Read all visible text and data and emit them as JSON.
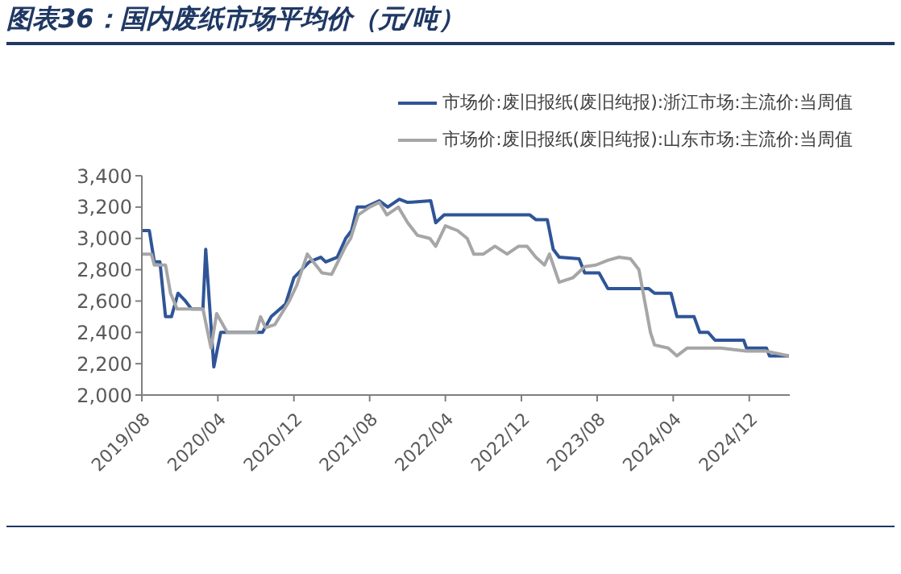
{
  "chart_data": {
    "type": "line",
    "title": "图表36：国内废纸市场平均价（元/吨）",
    "xlim": [
      "2019-08-01",
      "2025-04-10"
    ],
    "xticks": [
      {
        "value": "2019-08",
        "label": "2019/08"
      },
      {
        "value": "2020-04",
        "label": "2020/04"
      },
      {
        "value": "2020-12",
        "label": "2020/12"
      },
      {
        "value": "2021-08",
        "label": "2021/08"
      },
      {
        "value": "2022-04",
        "label": "2022/04"
      },
      {
        "value": "2022-12",
        "label": "2022/12"
      },
      {
        "value": "2023-08",
        "label": "2023/08"
      },
      {
        "value": "2024-04",
        "label": "2024/04"
      },
      {
        "value": "2024-12",
        "label": "2024/12"
      }
    ],
    "ylim": [
      2000,
      3400
    ],
    "yticks": [
      {
        "value": 2000,
        "label": "2,000"
      },
      {
        "value": 2200,
        "label": "2,200"
      },
      {
        "value": 2400,
        "label": "2,400"
      },
      {
        "value": 2600,
        "label": "2,600"
      },
      {
        "value": 2800,
        "label": "2,800"
      },
      {
        "value": 3000,
        "label": "3,000"
      },
      {
        "value": 3200,
        "label": "3,200"
      },
      {
        "value": 3400,
        "label": "3,400"
      }
    ],
    "grid": false,
    "legend": "top right",
    "marker": "none",
    "line_style": "solid",
    "series": [
      {
        "name": "市场价:废旧报纸(废旧纯报):浙江市场:主流价:当周值",
        "color": "#2f5597",
        "x": [
          "2019-08-01",
          "2019-08-25",
          "2019-09-10",
          "2019-09-28",
          "2019-10-16",
          "2019-11-04",
          "2019-11-25",
          "2019-12-19",
          "2020-01-07",
          "2020-02-13",
          "2020-02-22",
          "2020-03-19",
          "2020-04-10",
          "2020-08-22",
          "2020-09-19",
          "2020-11-04",
          "2020-12-01",
          "2021-01-19",
          "2021-02-25",
          "2021-03-13",
          "2021-04-19",
          "2021-05-16",
          "2021-06-04",
          "2021-06-22",
          "2021-07-19",
          "2021-09-01",
          "2021-09-28",
          "2021-11-04",
          "2021-12-01",
          "2022-02-13",
          "2022-03-01",
          "2022-03-28",
          "2022-12-28",
          "2023-01-16",
          "2023-02-22",
          "2023-03-13",
          "2023-04-01",
          "2023-06-04",
          "2023-06-22",
          "2023-08-07",
          "2023-09-04",
          "2024-01-13",
          "2024-02-01",
          "2024-03-25",
          "2024-04-13",
          "2024-06-07",
          "2024-06-25",
          "2024-07-22",
          "2024-08-13",
          "2024-11-13",
          "2024-11-22",
          "2025-01-25",
          "2025-02-04",
          "2025-04-07"
        ],
        "values": [
          3050,
          3050,
          2850,
          2850,
          2500,
          2500,
          2650,
          2600,
          2550,
          2550,
          2930,
          2180,
          2400,
          2400,
          2500,
          2580,
          2750,
          2850,
          2880,
          2850,
          2880,
          3000,
          3050,
          3200,
          3200,
          3240,
          3200,
          3250,
          3230,
          3240,
          3100,
          3150,
          3150,
          3120,
          3120,
          2930,
          2880,
          2870,
          2780,
          2780,
          2680,
          2680,
          2650,
          2650,
          2500,
          2500,
          2400,
          2400,
          2350,
          2350,
          2300,
          2300,
          2250,
          2250
        ]
      },
      {
        "name": "市场价:废旧报纸(废旧纯报):山东市场:主流价:当周值",
        "color": "#a6a6a6",
        "x": [
          "2019-08-01",
          "2019-09-01",
          "2019-09-10",
          "2019-10-16",
          "2019-11-01",
          "2019-11-22",
          "2020-02-13",
          "2020-03-10",
          "2020-03-28",
          "2020-05-01",
          "2020-08-01",
          "2020-08-16",
          "2020-09-01",
          "2020-10-01",
          "2020-11-16",
          "2020-12-10",
          "2021-01-13",
          "2021-02-01",
          "2021-03-01",
          "2021-04-01",
          "2021-05-16",
          "2021-06-01",
          "2021-06-25",
          "2021-08-01",
          "2021-09-01",
          "2021-09-25",
          "2021-11-01",
          "2021-12-01",
          "2022-01-01",
          "2022-02-10",
          "2022-03-01",
          "2022-04-01",
          "2022-05-10",
          "2022-06-10",
          "2022-07-01",
          "2022-08-01",
          "2022-09-07",
          "2022-10-16",
          "2022-11-22",
          "2022-12-19",
          "2023-01-16",
          "2023-02-13",
          "2023-03-01",
          "2023-04-01",
          "2023-05-16",
          "2023-06-22",
          "2023-07-28",
          "2023-09-04",
          "2023-10-10",
          "2023-11-16",
          "2023-12-13",
          "2024-01-19",
          "2024-02-01",
          "2024-03-16",
          "2024-04-13",
          "2024-05-16",
          "2024-09-01",
          "2024-11-22",
          "2025-01-25",
          "2025-04-07"
        ],
        "values": [
          2900,
          2900,
          2830,
          2830,
          2650,
          2550,
          2550,
          2300,
          2520,
          2400,
          2400,
          2500,
          2430,
          2450,
          2600,
          2700,
          2900,
          2850,
          2780,
          2770,
          2950,
          3000,
          3150,
          3200,
          3230,
          3150,
          3200,
          3100,
          3020,
          3000,
          2950,
          3080,
          3050,
          3000,
          2900,
          2900,
          2950,
          2900,
          2950,
          2950,
          2880,
          2830,
          2900,
          2720,
          2750,
          2820,
          2830,
          2860,
          2880,
          2870,
          2800,
          2400,
          2320,
          2300,
          2250,
          2300,
          2300,
          2280,
          2280,
          2250
        ]
      }
    ]
  }
}
